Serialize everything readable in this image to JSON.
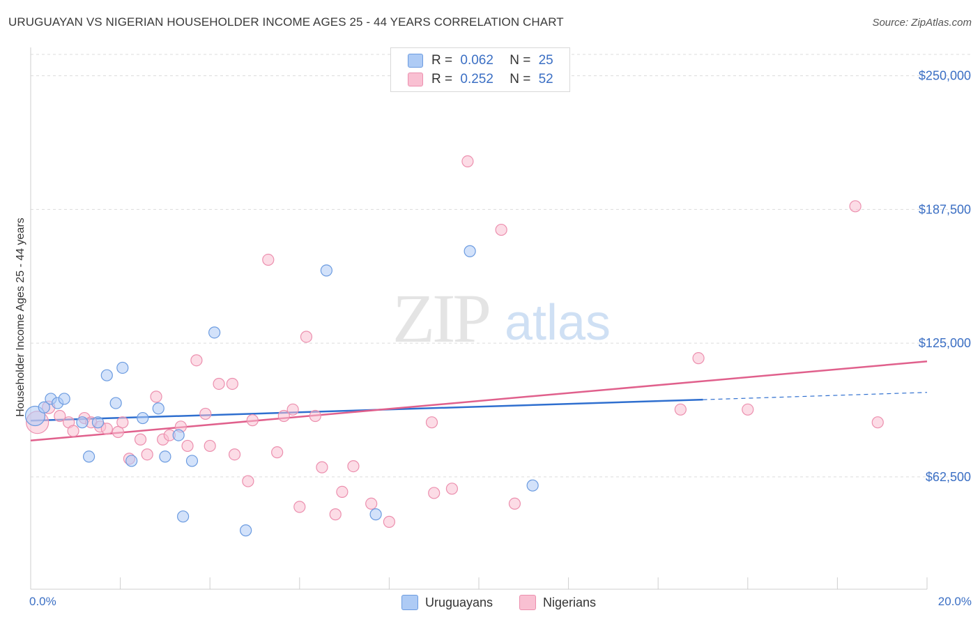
{
  "title": "URUGUAYAN VS NIGERIAN HOUSEHOLDER INCOME AGES 25 - 44 YEARS CORRELATION CHART",
  "source": "Source: ZipAtlas.com",
  "watermark": {
    "zip": "ZIP",
    "atlas": "atlas"
  },
  "legend": {
    "rows": [
      {
        "r_label": "R =",
        "r_value": "0.062",
        "n_label": "N =",
        "n_value": "25",
        "color": "#aecbf5"
      },
      {
        "r_label": "R =",
        "r_value": "0.252",
        "n_label": "N =",
        "n_value": "52",
        "color": "#f9c0d2"
      }
    ]
  },
  "bottom_legend": [
    {
      "label": "Uruguayans",
      "color": "#aecbf5"
    },
    {
      "label": "Nigerians",
      "color": "#f9c0d2"
    }
  ],
  "chart_data": {
    "type": "scatter",
    "title": "URUGUAYAN VS NIGERIAN HOUSEHOLDER INCOME AGES 25 - 44 YEARS CORRELATION CHART",
    "xlabel": "",
    "ylabel": "Householder Income Ages 25 - 44 years",
    "xlim": [
      0,
      20
    ],
    "ylim": [
      10000,
      260000
    ],
    "x_tick_labels": {
      "left": "0.0%",
      "right": "20.0%"
    },
    "y_ticks": [
      {
        "value": 250000,
        "label": "$250,000"
      },
      {
        "value": 187500,
        "label": "$187,500"
      },
      {
        "value": 125000,
        "label": "$125,000"
      },
      {
        "value": 62500,
        "label": "$62,500"
      }
    ],
    "series": [
      {
        "name": "Uruguayans",
        "color": "#aecbf5",
        "stroke": "#6b9be0",
        "line_color": "#2f6fcf",
        "trend": {
          "x0": 0.0,
          "y0": 88800,
          "x1": 15.0,
          "y1": 98600,
          "dash_x1": 20.0,
          "dash_y1": 102000
        },
        "points": [
          [
            0.1,
            91000,
            14
          ],
          [
            0.3,
            95000,
            8
          ],
          [
            0.45,
            99000,
            8
          ],
          [
            0.6,
            97000,
            8
          ],
          [
            0.75,
            99000,
            8
          ],
          [
            1.15,
            88000,
            8
          ],
          [
            1.3,
            72000,
            8
          ],
          [
            1.5,
            88000,
            8
          ],
          [
            1.7,
            110000,
            8
          ],
          [
            1.9,
            97000,
            8
          ],
          [
            2.05,
            113500,
            8
          ],
          [
            2.25,
            70000,
            8
          ],
          [
            2.5,
            90000,
            8
          ],
          [
            2.85,
            94500,
            8
          ],
          [
            3.0,
            72000,
            8
          ],
          [
            3.3,
            82000,
            8
          ],
          [
            3.4,
            44000,
            8
          ],
          [
            3.6,
            70000,
            8
          ],
          [
            4.1,
            130000,
            8
          ],
          [
            4.8,
            37500,
            8
          ],
          [
            6.6,
            159000,
            8
          ],
          [
            7.7,
            45000,
            8
          ],
          [
            9.8,
            168000,
            8
          ],
          [
            11.2,
            58500,
            8
          ]
        ]
      },
      {
        "name": "Nigerians",
        "color": "#f9c0d2",
        "stroke": "#ec8fae",
        "line_color": "#e0608c",
        "trend": {
          "x0": 0.0,
          "y0": 79500,
          "x1": 20.0,
          "y1": 116500
        },
        "points": [
          [
            0.15,
            88000,
            16
          ],
          [
            0.4,
            95000,
            9
          ],
          [
            0.65,
            91000,
            8
          ],
          [
            0.85,
            88000,
            8
          ],
          [
            0.95,
            84000,
            8
          ],
          [
            1.2,
            90000,
            8
          ],
          [
            1.35,
            88000,
            8
          ],
          [
            1.55,
            86000,
            8
          ],
          [
            1.7,
            85000,
            8
          ],
          [
            1.95,
            83500,
            8
          ],
          [
            2.05,
            88000,
            8
          ],
          [
            2.2,
            71000,
            8
          ],
          [
            2.45,
            80000,
            8
          ],
          [
            2.6,
            73000,
            8
          ],
          [
            2.8,
            100000,
            8
          ],
          [
            2.95,
            80000,
            8
          ],
          [
            3.1,
            82000,
            8
          ],
          [
            3.35,
            86000,
            8
          ],
          [
            3.5,
            77000,
            8
          ],
          [
            3.7,
            117000,
            8
          ],
          [
            3.9,
            92000,
            8
          ],
          [
            4.0,
            77000,
            8
          ],
          [
            4.2,
            106000,
            8
          ],
          [
            4.5,
            106000,
            8
          ],
          [
            4.55,
            73000,
            8
          ],
          [
            4.85,
            60500,
            8
          ],
          [
            4.95,
            89000,
            8
          ],
          [
            5.3,
            164000,
            8
          ],
          [
            5.5,
            74000,
            8
          ],
          [
            5.65,
            91000,
            8
          ],
          [
            5.85,
            94000,
            8
          ],
          [
            6.0,
            48500,
            8
          ],
          [
            6.15,
            128000,
            8
          ],
          [
            6.35,
            91000,
            8
          ],
          [
            6.5,
            67000,
            8
          ],
          [
            6.8,
            45000,
            8
          ],
          [
            6.95,
            55500,
            8
          ],
          [
            7.2,
            67500,
            8
          ],
          [
            7.6,
            50000,
            8
          ],
          [
            8.0,
            41500,
            8
          ],
          [
            8.95,
            88000,
            8
          ],
          [
            9.0,
            55000,
            8
          ],
          [
            9.4,
            57000,
            8
          ],
          [
            9.75,
            210000,
            8
          ],
          [
            10.5,
            178000,
            8
          ],
          [
            10.8,
            50000,
            8
          ],
          [
            14.5,
            94000,
            8
          ],
          [
            14.9,
            118000,
            8
          ],
          [
            16.0,
            94000,
            8
          ],
          [
            18.4,
            189000,
            8
          ],
          [
            18.9,
            88000,
            8
          ]
        ]
      }
    ]
  }
}
